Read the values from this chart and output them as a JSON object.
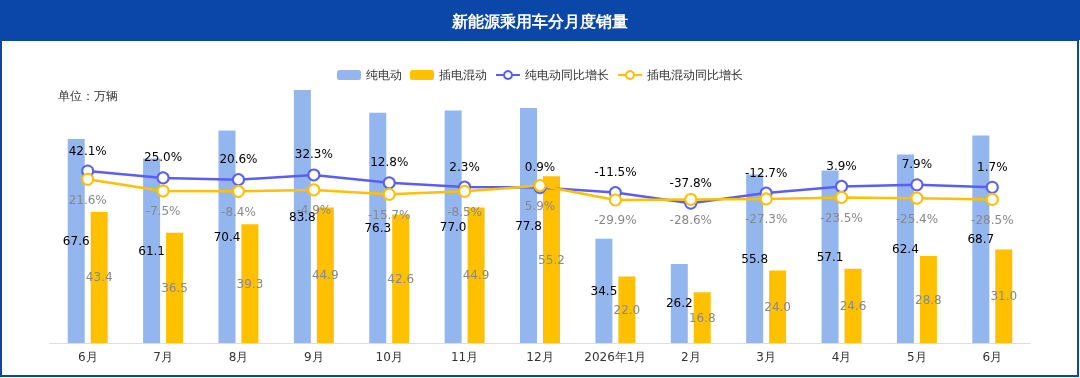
{
  "chart_data": {
    "type": "bar",
    "title": "新能源乘用车分月度销量",
    "annotations": [
      "单位：万辆"
    ],
    "categories": [
      "6月",
      "7月",
      "8月",
      "9月",
      "10月",
      "11月",
      "12月",
      "2026年1月",
      "2月",
      "3月",
      "4月",
      "5月",
      "6月"
    ],
    "series": [
      {
        "name": "纯电动",
        "color": "#93b6ee",
        "values": [
          67.6,
          61.1,
          70.4,
          83.8,
          76.3,
          77.0,
          77.8,
          34.5,
          26.2,
          55.8,
          57.1,
          62.4,
          68.7
        ],
        "value_labels": [
          "67.6",
          "61.1",
          "70.4",
          "83.8",
          "76.3",
          "77.0",
          "77.8",
          "34.5",
          "26.2",
          "55.8",
          "57.1",
          "62.4",
          "68.7"
        ]
      },
      {
        "name": "插电混动",
        "color": "#ffc000",
        "values": [
          43.4,
          36.5,
          39.3,
          44.9,
          42.6,
          44.9,
          55.2,
          22.0,
          16.8,
          24.0,
          24.6,
          28.8,
          31.0
        ],
        "value_labels": [
          "43.4",
          "36.5",
          "39.3",
          "44.9",
          "42.6",
          "44.9",
          "55.2",
          "22.0",
          "16.8",
          "24.0",
          "24.6",
          "28.8",
          "31.0"
        ]
      },
      {
        "name": "纯电动同比增长",
        "type": "line",
        "axis": "y2",
        "color": "#5b5ef5",
        "values": [
          42.1,
          25.0,
          20.6,
          32.3,
          12.8,
          2.3,
          0.9,
          -11.5,
          -37.8,
          -12.7,
          3.9,
          7.9,
          1.7
        ],
        "value_labels": [
          "42.1%",
          "25.0%",
          "20.6%",
          "32.3%",
          "12.8%",
          "2.3%",
          "0.9%",
          "-11.5%",
          "-37.8%",
          "-12.7%",
          "3.9%",
          "7.9%",
          "1.7%"
        ]
      },
      {
        "name": "插电混动同比增长",
        "type": "line",
        "axis": "y2",
        "color": "#ffc000",
        "values": [
          21.6,
          -7.5,
          -8.4,
          -4.9,
          -15.7,
          -8.5,
          5.9,
          -29.9,
          -28.6,
          -27.3,
          -23.5,
          -25.4,
          -28.5
        ],
        "value_labels": [
          "21.6%",
          "-7.5%",
          "-8.4%",
          "-4.9%",
          "-15.7%",
          "-8.5%",
          "5.9%",
          "-29.9%",
          "-28.6%",
          "-27.3%",
          "-23.5%",
          "-25.4%",
          "-28.5%"
        ]
      }
    ],
    "tick_labels": "x",
    "legend": "top",
    "marker": "circle"
  }
}
